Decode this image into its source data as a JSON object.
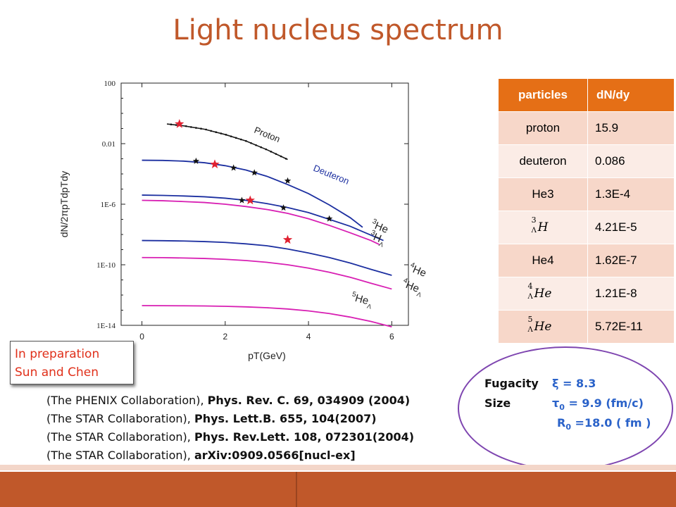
{
  "title": "Light nucleus spectrum",
  "chart_data": {
    "type": "line",
    "ylabel": "dN/2πpTdpTdy",
    "xlabel": "pT(GeV)",
    "x_ticks": [
      "0",
      "2",
      "4",
      "6"
    ],
    "y_ticks": [
      "100",
      "0.01",
      "1E-6",
      "1E-10",
      "1E-14"
    ],
    "xlim": [
      -0.5,
      6.4
    ],
    "ylim_log10": [
      -14,
      2
    ],
    "log_y": true,
    "series": [
      {
        "name": "Proton",
        "color": "#1a1a1a",
        "x": [
          0.6,
          1.0,
          1.5,
          2.0,
          2.5,
          3.0,
          3.5
        ],
        "y": [
          0.2,
          0.15,
          0.09,
          0.04,
          0.015,
          0.004,
          0.0009
        ]
      },
      {
        "name": "Deuteron",
        "color": "#1c2fa0",
        "x": [
          0,
          0.5,
          1.0,
          1.5,
          2.0,
          2.5,
          3.0,
          3.5,
          4.0,
          4.5,
          5.0,
          5.3
        ],
        "y": [
          0.0008,
          0.00078,
          0.0007,
          0.00055,
          0.00035,
          0.00018,
          7e-05,
          2e-05,
          5e-06,
          9e-07,
          1.3e-07,
          3e-08
        ]
      },
      {
        "name": "He3",
        "color": "#1c2fa0",
        "x": [
          0,
          0.5,
          1.0,
          1.5,
          2.0,
          2.5,
          3.0,
          3.5,
          4.0,
          4.5,
          5.0,
          5.5,
          5.8
        ],
        "y": [
          4e-06,
          3.8e-06,
          3.5e-06,
          3.1e-06,
          2.5e-06,
          1.8e-06,
          1.1e-06,
          6e-07,
          2.8e-07,
          1e-07,
          3.5e-08,
          9e-09,
          4e-09
        ]
      },
      {
        "name": "H3Λ",
        "color": "#d81fb3",
        "x": [
          0,
          0.5,
          1.0,
          1.5,
          2.0,
          2.5,
          3.0,
          3.5,
          4.0,
          4.5,
          5.0,
          5.5,
          5.7
        ],
        "y": [
          1.8e-06,
          1.7e-06,
          1.5e-06,
          1.3e-06,
          1e-06,
          7e-07,
          4.5e-07,
          2.5e-07,
          1.1e-07,
          4e-08,
          1.3e-08,
          4e-09,
          2.2e-09
        ]
      },
      {
        "name": "He4",
        "color": "#1c2fa0",
        "x": [
          0,
          0.5,
          1.0,
          1.5,
          2.0,
          2.5,
          3.0,
          3.5,
          4.0,
          4.5,
          5.0,
          5.5,
          6.0
        ],
        "y": [
          4e-09,
          3.9e-09,
          3.7e-09,
          3.4e-09,
          3e-09,
          2.4e-09,
          1.8e-09,
          1.1e-09,
          6e-10,
          3e-10,
          1.3e-10,
          5e-11,
          2e-11
        ]
      },
      {
        "name": "He4Λ",
        "color": "#d81fb3",
        "x": [
          0,
          0.5,
          1.0,
          1.5,
          2.0,
          2.5,
          3.0,
          3.5,
          4.0,
          4.5,
          5.0,
          5.5,
          6.0
        ],
        "y": [
          3e-10,
          2.95e-10,
          2.8e-10,
          2.6e-10,
          2.3e-10,
          1.9e-10,
          1.45e-10,
          1e-10,
          6e-11,
          3.2e-11,
          1.5e-11,
          6e-12,
          2.5e-12
        ]
      },
      {
        "name": "He5Λ",
        "color": "#d81fb3",
        "x": [
          0,
          0.5,
          1.0,
          1.5,
          2.0,
          2.5,
          3.0,
          3.5,
          4.0,
          4.5,
          5.0,
          5.5,
          6.0
        ],
        "y": [
          2e-13,
          1.98e-13,
          1.95e-13,
          1.9e-13,
          1.8e-13,
          1.65e-13,
          1.45e-13,
          1.2e-13,
          9e-14,
          6e-14,
          3.5e-14,
          1.8e-14,
          8e-15
        ]
      }
    ],
    "markers": [
      {
        "x": 0.9,
        "y": 0.2,
        "color": "#e02030",
        "size": "large"
      },
      {
        "x": 1.3,
        "y": 0.0007,
        "color": "#111111",
        "size": "small"
      },
      {
        "x": 1.75,
        "y": 0.00043,
        "color": "#e02030",
        "size": "large"
      },
      {
        "x": 2.2,
        "y": 0.00025,
        "color": "#111111",
        "size": "small"
      },
      {
        "x": 2.7,
        "y": 0.00012,
        "color": "#111111",
        "size": "small"
      },
      {
        "x": 3.5,
        "y": 3.5e-05,
        "color": "#111111",
        "size": "small"
      },
      {
        "x": 2.4,
        "y": 1.8e-06,
        "color": "#111111",
        "size": "small"
      },
      {
        "x": 2.6,
        "y": 1.8e-06,
        "color": "#e02030",
        "size": "large"
      },
      {
        "x": 3.4,
        "y": 5.8e-07,
        "color": "#111111",
        "size": "small"
      },
      {
        "x": 4.5,
        "y": 1.1e-07,
        "color": "#111111",
        "size": "small"
      },
      {
        "x": 3.5,
        "y": 4.5e-09,
        "color": "#e02030",
        "size": "large"
      }
    ],
    "proton_data_label": "Proton",
    "deuteron_label": "Deuteron"
  },
  "table": {
    "headers": [
      "particles",
      "dN/dy"
    ],
    "rows": [
      {
        "particle": "proton",
        "value": "15.9"
      },
      {
        "particle": "deuteron",
        "value": "0.086"
      },
      {
        "particle": "He3",
        "value": "1.3E-4"
      },
      {
        "sym": "H",
        "sup": "3",
        "sub": "Λ",
        "value": "4.21E-5"
      },
      {
        "particle": "He4",
        "value": "1.62E-7"
      },
      {
        "sym": "He",
        "sup": "4",
        "sub": "Λ",
        "value": "1.21E-8"
      },
      {
        "sym": "He",
        "sup": "5",
        "sub": "Λ",
        "value": "5.72E-11"
      }
    ]
  },
  "note": {
    "line1": "In preparation",
    "line2": "Sun and Chen"
  },
  "references": [
    {
      "plain": "(The PHENIX Collaboration), ",
      "bold": "Phys. Rev. C. 69, 034909 (2004)"
    },
    {
      "plain": "(The STAR Collaboration), ",
      "bold": "Phys. Lett.B. 655, 104(2007)"
    },
    {
      "plain": "(The STAR Collaboration), ",
      "bold": "Phys. Rev.Lett. 108, 072301(2004)"
    },
    {
      "plain": "(The STAR Collaboration), ",
      "bold": "arXiv:0909.0566[nucl-ex]"
    }
  ],
  "params": {
    "fugacity_label": "Fugacity",
    "fugacity_value": "ξ   = 8.3",
    "size_label": "Size",
    "tau_symbol": "τ",
    "tau_sub": "0",
    "tau_value": " = 9.9    (fm/c)",
    "r_symbol": "R",
    "r_sub": "0",
    "r_value": " =18.0   (  fm  )"
  },
  "colors": {
    "title": "#c0582a",
    "header": "#e56f16",
    "accent_bar": "#c0582a",
    "oval": "#7e45b0",
    "param_value": "#2a62c9",
    "note_text": "#e0301a"
  }
}
